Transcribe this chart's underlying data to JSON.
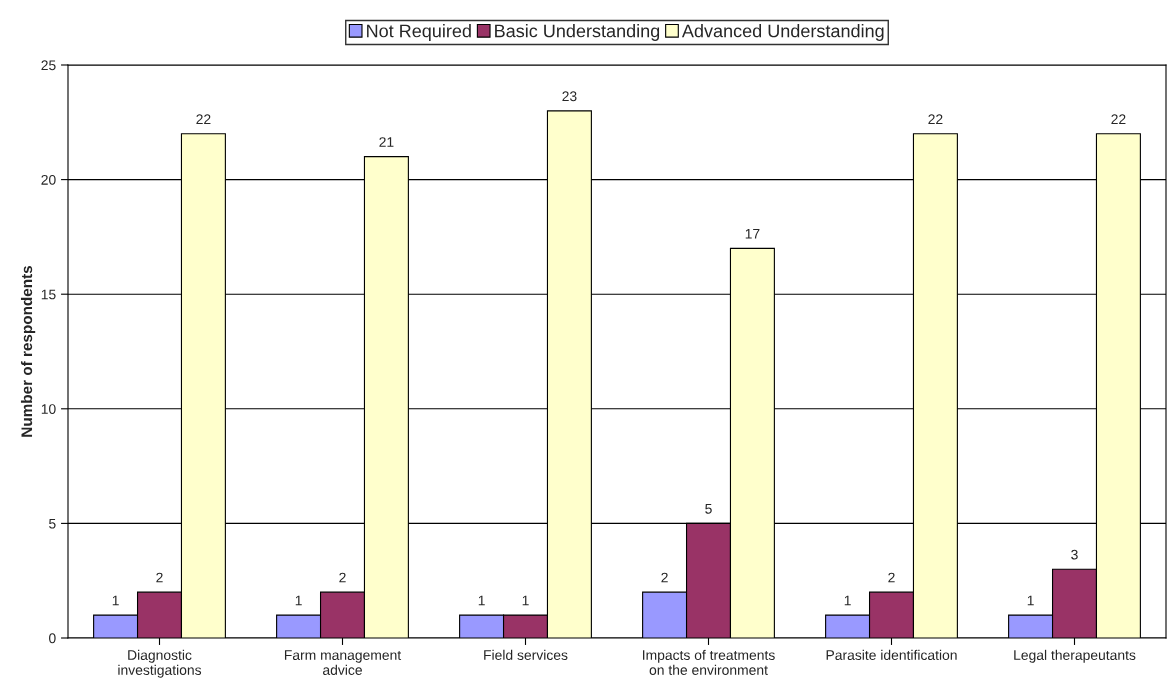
{
  "chart_data": {
    "type": "bar",
    "ylabel": "Number of respondents",
    "categories": [
      "Diagnostic\ninvestigations",
      "Farm management\nadvice",
      "Field services",
      "Impacts of treatments\non the environment",
      "Parasite identification",
      "Legal therapeutants"
    ],
    "series": [
      {
        "name": "Not Required",
        "color": "#9999ff",
        "values": [
          1,
          1,
          1,
          2,
          1,
          1
        ]
      },
      {
        "name": "Basic Understanding",
        "color": "#993366",
        "values": [
          2,
          2,
          1,
          5,
          2,
          3
        ]
      },
      {
        "name": "Advanced Understanding",
        "color": "#ffffcc",
        "values": [
          22,
          21,
          23,
          17,
          22,
          22
        ]
      }
    ],
    "ylim": [
      0,
      25
    ],
    "yticks": [
      0,
      5,
      10,
      15,
      20,
      25
    ],
    "grid": "y",
    "legend": "top",
    "data_labels": true
  }
}
